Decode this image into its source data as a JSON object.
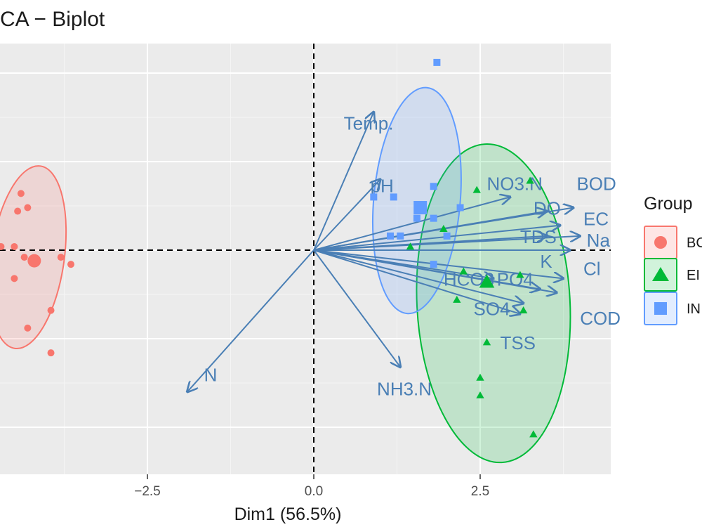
{
  "chart_data": {
    "type": "scatter",
    "title": "CA − Biplot",
    "xlabel": "Dim1 (56.5%)",
    "ylabel": "",
    "xlim": [
      -4.7,
      4.5
    ],
    "ylim": [
      -3.2,
      3.0
    ],
    "x_ticks": [
      {
        "value": -2.5,
        "label": "−2.5"
      },
      {
        "value": 0.0,
        "label": "0.0"
      },
      {
        "value": 2.5,
        "label": "2.5"
      }
    ],
    "x_grid_minor": [
      -3.75,
      -1.25,
      1.25,
      3.75
    ],
    "y_grid_major": [
      -2.5,
      -1.25,
      0,
      1.25,
      2.5
    ],
    "y_grid_minor": [
      -1.875,
      -0.625,
      0.625,
      1.875
    ],
    "grid": true,
    "legend": {
      "title": "Group",
      "placement": "right",
      "entries": [
        "BC",
        "EI",
        "IN"
      ]
    },
    "series": [
      {
        "name": "BC",
        "color": "#f8766d",
        "shape": "circle",
        "points": [
          [
            -4.4,
            0.8
          ],
          [
            -4.3,
            0.6
          ],
          [
            -4.45,
            0.55
          ],
          [
            -4.5,
            0.05
          ],
          [
            -4.7,
            0.05
          ],
          [
            -4.35,
            -0.1
          ],
          [
            -3.8,
            -0.1
          ],
          [
            -3.65,
            -0.2
          ],
          [
            -4.5,
            -0.4
          ],
          [
            -3.95,
            -0.85
          ],
          [
            -4.3,
            -1.1
          ],
          [
            -3.95,
            -1.45
          ]
        ],
        "centroid": [
          -4.2,
          -0.15
        ],
        "ellipse": {
          "cx": -4.3,
          "cy": -0.1,
          "rx": 0.55,
          "ry": 1.3,
          "angle": 8
        }
      },
      {
        "name": "EI",
        "color": "#00ba38",
        "shape": "triangle",
        "points": [
          [
            3.25,
            0.98
          ],
          [
            2.45,
            0.85
          ],
          [
            1.95,
            0.3
          ],
          [
            1.45,
            0.05
          ],
          [
            2.25,
            -0.3
          ],
          [
            3.1,
            -0.35
          ],
          [
            2.15,
            -0.7
          ],
          [
            3.15,
            -0.85
          ],
          [
            2.6,
            -1.3
          ],
          [
            2.5,
            -1.8
          ],
          [
            2.5,
            -2.05
          ],
          [
            3.3,
            -2.6
          ]
        ],
        "centroid": [
          2.6,
          -0.45
        ],
        "ellipse": {
          "cx": 2.7,
          "cy": -0.75,
          "rx": 1.15,
          "ry": 2.25,
          "angle": -3
        }
      },
      {
        "name": "IN",
        "color": "#619cff",
        "shape": "square",
        "points": [
          [
            1.85,
            2.65
          ],
          [
            1.8,
            0.9
          ],
          [
            0.9,
            0.75
          ],
          [
            1.2,
            0.75
          ],
          [
            2.2,
            0.6
          ],
          [
            1.55,
            0.45
          ],
          [
            1.8,
            0.45
          ],
          [
            1.15,
            0.2
          ],
          [
            1.3,
            0.2
          ],
          [
            2.0,
            0.2
          ],
          [
            1.8,
            -0.2
          ]
        ],
        "centroid": [
          1.6,
          0.6
        ],
        "ellipse": {
          "cx": 1.55,
          "cy": 0.7,
          "rx": 0.65,
          "ry": 1.6,
          "angle": 5
        }
      }
    ],
    "variables": [
      {
        "name": "Temp.",
        "x": 0.9,
        "y": 1.95,
        "lx": 0.45,
        "ly": 1.7
      },
      {
        "name": "pH",
        "x": 1.0,
        "y": 1.0,
        "lx": 0.85,
        "ly": 0.82
      },
      {
        "name": "NO3.N",
        "x": 2.95,
        "y": 0.75,
        "lx": 2.6,
        "ly": 0.85
      },
      {
        "name": "BOD",
        "x": 3.9,
        "y": 0.6,
        "lx": 3.95,
        "ly": 0.85
      },
      {
        "name": "DO",
        "x": 3.5,
        "y": 0.55,
        "lx": 3.3,
        "ly": 0.5
      },
      {
        "name": "EC",
        "x": 3.7,
        "y": 0.35,
        "lx": 4.05,
        "ly": 0.35
      },
      {
        "name": "TDS",
        "x": 3.5,
        "y": 0.2,
        "lx": 3.1,
        "ly": 0.1
      },
      {
        "name": "Na",
        "x": 4.0,
        "y": 0.2,
        "lx": 4.1,
        "ly": 0.05
      },
      {
        "name": "K",
        "x": 3.85,
        "y": 0.0,
        "lx": 3.4,
        "ly": -0.25
      },
      {
        "name": "Cl",
        "x": 3.75,
        "y": -0.4,
        "lx": 4.05,
        "ly": -0.35
      },
      {
        "name": "HCO3",
        "x": 2.7,
        "y": -0.4,
        "lx": 1.95,
        "ly": -0.5
      },
      {
        "name": "PO4",
        "x": 3.4,
        "y": -0.55,
        "lx": 2.75,
        "ly": -0.5
      },
      {
        "name": "SO4",
        "x": 3.15,
        "y": -0.75,
        "lx": 2.4,
        "ly": -0.92
      },
      {
        "name": "COD",
        "x": 3.65,
        "y": -0.6,
        "lx": 4.0,
        "ly": -1.05
      },
      {
        "name": "TSS",
        "x": 3.1,
        "y": -0.9,
        "lx": 2.8,
        "ly": -1.4
      },
      {
        "name": "NH3.N",
        "x": 1.3,
        "y": -1.65,
        "lx": 0.95,
        "ly": -2.05
      },
      {
        "name": "N",
        "x": -1.9,
        "y": -2.0,
        "lx": -1.65,
        "ly": -1.85
      }
    ]
  }
}
